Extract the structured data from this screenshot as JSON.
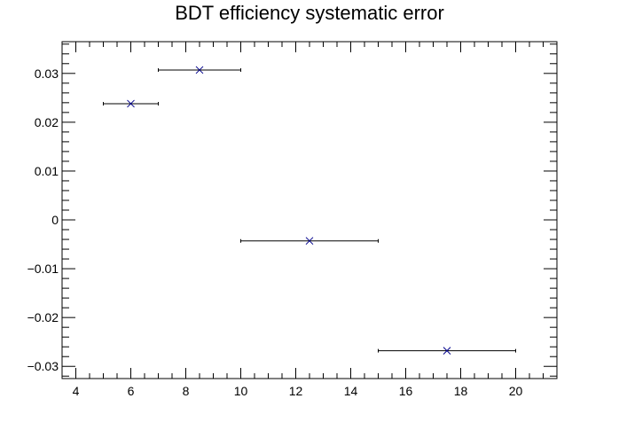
{
  "chart_data": {
    "type": "scatter",
    "title": "BDT efficiency systematic error",
    "xlabel": "",
    "ylabel": "",
    "xlim": [
      3.5,
      21.5
    ],
    "ylim": [
      -0.0325,
      0.0365
    ],
    "x_ticks": [
      4,
      6,
      8,
      10,
      12,
      14,
      16,
      18,
      20
    ],
    "y_ticks": [
      -0.03,
      -0.02,
      -0.01,
      0,
      0.01,
      0.02,
      0.03
    ],
    "x_tick_labels": [
      "4",
      "6",
      "8",
      "10",
      "12",
      "14",
      "16",
      "18",
      "20"
    ],
    "y_tick_labels": [
      "−0.03",
      "−0.02",
      "−0.01",
      "0",
      "0.01",
      "0.02",
      "0.03"
    ],
    "grid": false,
    "legend": "none",
    "marker": "x",
    "marker_color": "#00008b",
    "errorbar_color": "#000000",
    "series": [
      {
        "points": [
          {
            "x": 6.0,
            "y": 0.0238,
            "xlow": 5.0,
            "xhigh": 7.0
          },
          {
            "x": 8.5,
            "y": 0.0307,
            "xlow": 7.0,
            "xhigh": 10.0
          },
          {
            "x": 12.5,
            "y": -0.0043,
            "xlow": 10.0,
            "xhigh": 15.0
          },
          {
            "x": 17.5,
            "y": -0.0268,
            "xlow": 15.0,
            "xhigh": 20.0
          }
        ]
      }
    ]
  }
}
